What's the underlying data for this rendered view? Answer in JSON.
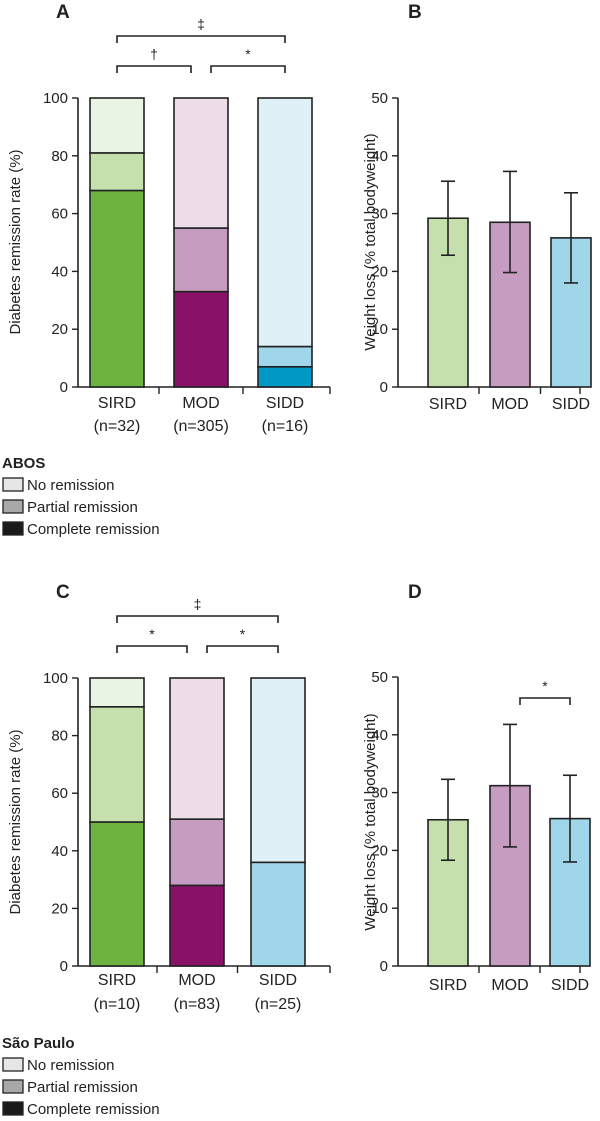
{
  "chart_data": [
    {
      "panel": "A",
      "type": "bar",
      "stacked": true,
      "ylabel": "Diabetes remission rate (%)",
      "ylim": [
        0,
        100
      ],
      "yticks": [
        0,
        20,
        40,
        60,
        80,
        100
      ],
      "categories": [
        "SIRD",
        "MOD",
        "SIDD"
      ],
      "category_n": [
        "(n=32)",
        "(n=305)",
        "(n=16)"
      ],
      "series": [
        {
          "name": "Complete remission",
          "values": [
            68,
            33,
            7
          ]
        },
        {
          "name": "Partial remission",
          "values": [
            13,
            22,
            7
          ]
        },
        {
          "name": "No remission",
          "values": [
            19,
            45,
            86
          ]
        }
      ],
      "colors": [
        [
          "#6db33f",
          "#c6e0ad",
          "#eaf4e4"
        ],
        [
          "#891168",
          "#c69cc1",
          "#ecdde9"
        ],
        [
          "#0099c5",
          "#9fd6ea",
          "#dff0f7"
        ]
      ],
      "significance": [
        {
          "from": 0,
          "to": 1,
          "label": "†",
          "level": 1
        },
        {
          "from": 1,
          "to": 2,
          "label": "*",
          "level": 1
        },
        {
          "from": 0,
          "to": 2,
          "label": "‡",
          "level": 2
        }
      ]
    },
    {
      "panel": "B",
      "type": "bar",
      "ylabel": "Weight loss (% total bodyweight)",
      "ylim": [
        0,
        50
      ],
      "yticks": [
        0,
        10,
        20,
        30,
        40,
        50
      ],
      "categories": [
        "SIRD",
        "MOD",
        "SIDD"
      ],
      "values": [
        29.2,
        28.5,
        25.8
      ],
      "error_low": [
        22.8,
        19.8,
        18
      ],
      "error_high": [
        35.6,
        37.3,
        33.6
      ],
      "colors": [
        "#c6e0ad",
        "#c69cc1",
        "#9fd6ea"
      ],
      "significance": []
    },
    {
      "panel": "C",
      "type": "bar",
      "stacked": true,
      "ylabel": "Diabetes remission rate (%)",
      "ylim": [
        0,
        100
      ],
      "yticks": [
        0,
        20,
        40,
        60,
        80,
        100
      ],
      "categories": [
        "SIRD",
        "MOD",
        "SIDD"
      ],
      "category_n": [
        "(n=10)",
        "(n=83)",
        "(n=25)"
      ],
      "series": [
        {
          "name": "Complete remission",
          "values": [
            50,
            28,
            0
          ]
        },
        {
          "name": "Partial remission",
          "values": [
            40,
            23,
            36
          ]
        },
        {
          "name": "No remission",
          "values": [
            10,
            49,
            64
          ]
        }
      ],
      "colors": [
        [
          "#6db33f",
          "#c6e0ad",
          "#eaf4e4"
        ],
        [
          "#891168",
          "#c69cc1",
          "#ecdde9"
        ],
        [
          "#0099c5",
          "#9fd6ea",
          "#dff0f7"
        ]
      ],
      "significance": [
        {
          "from": 0,
          "to": 1,
          "label": "*",
          "level": 1
        },
        {
          "from": 1,
          "to": 2,
          "label": "*",
          "level": 1
        },
        {
          "from": 0,
          "to": 2,
          "label": "‡",
          "level": 2
        }
      ]
    },
    {
      "panel": "D",
      "type": "bar",
      "ylabel": "Weight loss (% total bodyweight)",
      "ylim": [
        0,
        50
      ],
      "yticks": [
        0,
        10,
        20,
        30,
        40,
        50
      ],
      "categories": [
        "SIRD",
        "MOD",
        "SIDD"
      ],
      "values": [
        25.3,
        31.2,
        25.5
      ],
      "error_low": [
        18.3,
        20.6,
        18
      ],
      "error_high": [
        32.3,
        41.8,
        33
      ],
      "colors": [
        "#c6e0ad",
        "#c69cc1",
        "#9fd6ea"
      ],
      "significance": [
        {
          "from": 1,
          "to": 2,
          "label": "*",
          "level": 1
        }
      ]
    }
  ],
  "legends": [
    {
      "title": "ABOS",
      "items": [
        {
          "label": "No remission",
          "color": "#e6e6e6"
        },
        {
          "label": "Partial remission",
          "color": "#a8a8a8"
        },
        {
          "label": "Complete remission",
          "color": "#1a1a1a"
        }
      ]
    },
    {
      "title": "São Paulo",
      "items": [
        {
          "label": "No remission",
          "color": "#e6e6e6"
        },
        {
          "label": "Partial remission",
          "color": "#a8a8a8"
        },
        {
          "label": "Complete remission",
          "color": "#1a1a1a"
        }
      ]
    }
  ]
}
